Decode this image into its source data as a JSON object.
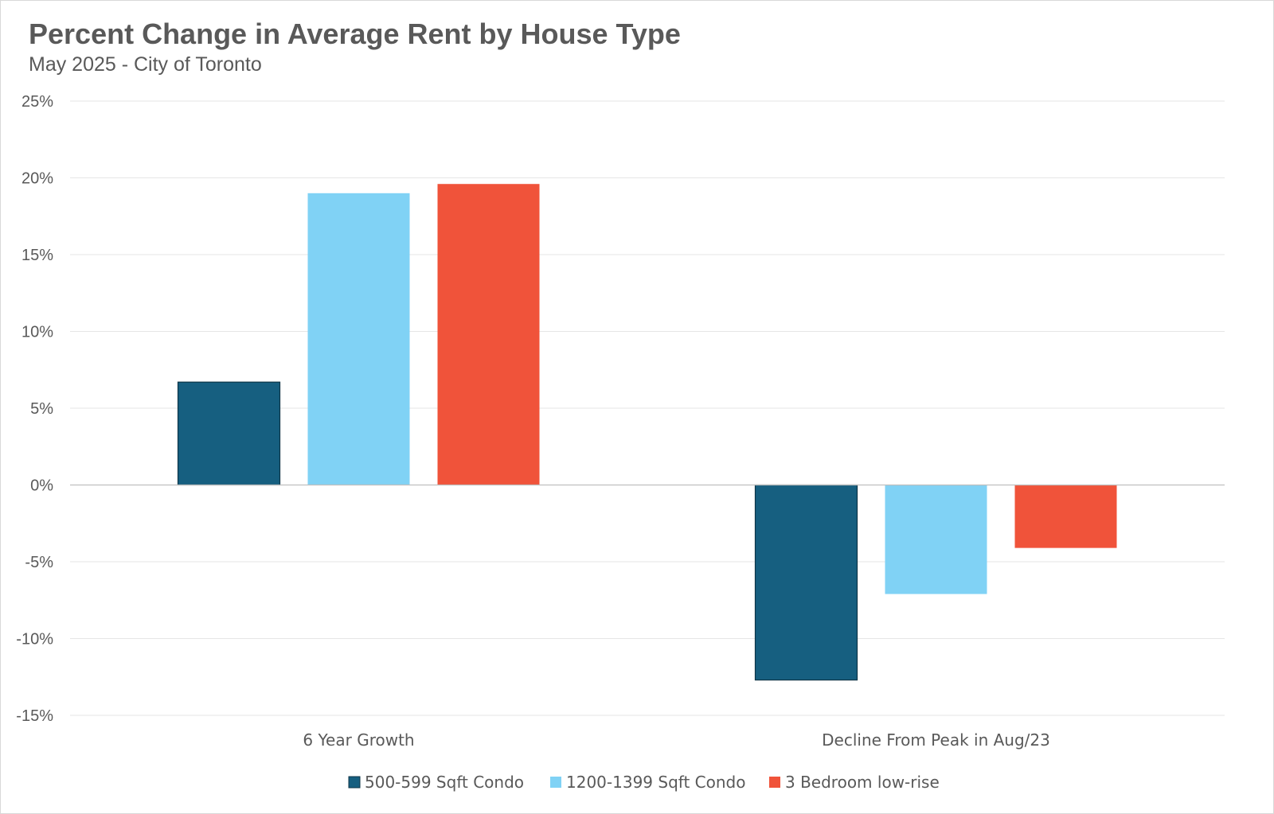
{
  "chart_data": {
    "type": "bar",
    "title": "Percent Change in Average Rent by House Type",
    "subtitle": "May 2025 - City of Toronto",
    "categories": [
      "6 Year Growth",
      "Decline From Peak in Aug/23"
    ],
    "series": [
      {
        "name": "500-599 Sqft Condo",
        "values": [
          6.7,
          -12.7
        ],
        "color": "#165f80"
      },
      {
        "name": "1200-1399 Sqft Condo",
        "values": [
          19.0,
          -7.1
        ],
        "color": "#80d2f5"
      },
      {
        "name": "3 Bedroom low-rise",
        "values": [
          19.6,
          -4.1
        ],
        "color": "#f0533a"
      }
    ],
    "ylim": [
      -15,
      25
    ],
    "yticks": [
      "25%",
      "20%",
      "15%",
      "10%",
      "5%",
      "0%",
      "-5%",
      "-10%",
      "-15%"
    ],
    "ytick_values": [
      25,
      20,
      15,
      10,
      5,
      0,
      -5,
      -10,
      -15
    ],
    "grid": true,
    "legend_position": "bottom"
  }
}
